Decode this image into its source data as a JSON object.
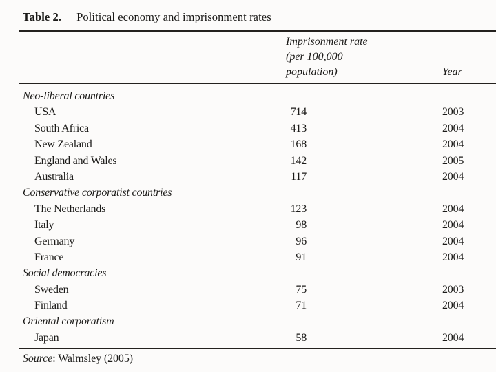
{
  "table": {
    "title": {
      "label": "Table 2.",
      "text": "Political economy and imprisonment rates"
    },
    "header": {
      "rate_line1": "Imprisonment rate",
      "rate_line2": "(per 100,000",
      "rate_line3": "population)",
      "year": "Year"
    },
    "rows": [
      {
        "type": "section",
        "label": "Neo-liberal countries",
        "rate": "",
        "year": ""
      },
      {
        "type": "country",
        "label": "USA",
        "rate": "714",
        "year": "2003"
      },
      {
        "type": "country",
        "label": "South Africa",
        "rate": "413",
        "year": "2004"
      },
      {
        "type": "country",
        "label": "New Zealand",
        "rate": "168",
        "year": "2004"
      },
      {
        "type": "country",
        "label": "England and Wales",
        "rate": "142",
        "year": "2005"
      },
      {
        "type": "country",
        "label": "Australia",
        "rate": "117",
        "year": "2004"
      },
      {
        "type": "section",
        "label": "Conservative corporatist countries",
        "rate": "",
        "year": ""
      },
      {
        "type": "country",
        "label": "The Netherlands",
        "rate": "123",
        "year": "2004"
      },
      {
        "type": "country",
        "label": "Italy",
        "rate": "98",
        "year": "2004"
      },
      {
        "type": "country",
        "label": "Germany",
        "rate": "96",
        "year": "2004"
      },
      {
        "type": "country",
        "label": "France",
        "rate": "91",
        "year": "2004"
      },
      {
        "type": "section",
        "label": "Social democracies",
        "rate": "",
        "year": ""
      },
      {
        "type": "country",
        "label": "Sweden",
        "rate": "75",
        "year": "2003"
      },
      {
        "type": "country",
        "label": "Finland",
        "rate": "71",
        "year": "2004"
      },
      {
        "type": "section",
        "label": "Oriental corporatism",
        "rate": "",
        "year": ""
      },
      {
        "type": "country",
        "label": "Japan",
        "rate": "58",
        "year": "2004"
      }
    ],
    "source": {
      "label": "Source",
      "text": ": Walmsley (2005)"
    }
  }
}
